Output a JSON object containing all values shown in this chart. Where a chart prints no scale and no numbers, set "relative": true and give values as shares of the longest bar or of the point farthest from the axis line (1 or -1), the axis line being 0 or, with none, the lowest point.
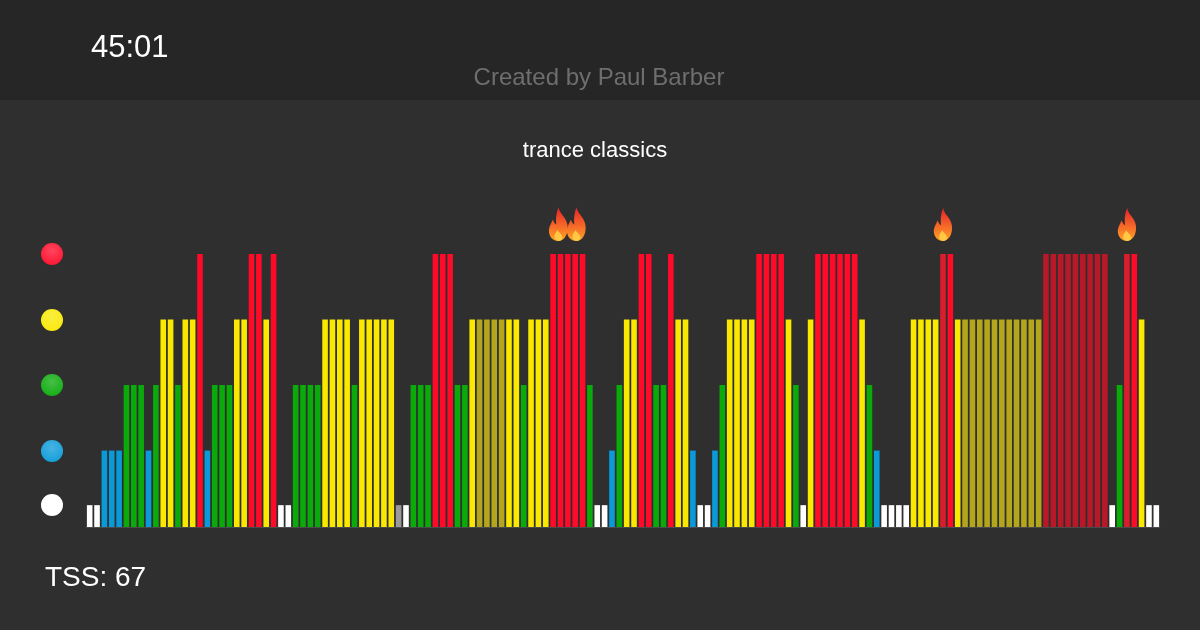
{
  "chart_data": {
    "type": "bar",
    "title": "trance classics",
    "subtitle": "Created by Paul Barber",
    "annotations": [
      "45:01",
      "TSS: 67"
    ],
    "relative": true,
    "categories": [
      null,
      null,
      null,
      null,
      null,
      null,
      null,
      null,
      null,
      null,
      null,
      null,
      null,
      null,
      null,
      null,
      null,
      null,
      null,
      null,
      null,
      null,
      null,
      null,
      null,
      null,
      null,
      null,
      null,
      null,
      null,
      null,
      null,
      null,
      null,
      null,
      null,
      null,
      null,
      null,
      null,
      null,
      null,
      null,
      null,
      null,
      null,
      null,
      null,
      null,
      null,
      null,
      null,
      null,
      null,
      null,
      null,
      null,
      null,
      null,
      null,
      null,
      null,
      null,
      null,
      null,
      null,
      null,
      null,
      null,
      null,
      null,
      null,
      null,
      null,
      null,
      null,
      null,
      null,
      null,
      null,
      null,
      null,
      null,
      null,
      null,
      null,
      null,
      null,
      null,
      null,
      null,
      null,
      null,
      null,
      null,
      null,
      null,
      null,
      null,
      null,
      null,
      null,
      null,
      null,
      null,
      null,
      null,
      null,
      null,
      null,
      null,
      null,
      null,
      null,
      null,
      null,
      null,
      null,
      null,
      null,
      null,
      null,
      null,
      null,
      null,
      null,
      null,
      null,
      null,
      null,
      null,
      null,
      null,
      null,
      null,
      null,
      null,
      null,
      null,
      null,
      null,
      null,
      null,
      null,
      null
    ],
    "values": [
      0.08,
      0.08,
      0.28,
      0.28,
      0.28,
      0.52,
      0.52,
      0.52,
      0.28,
      0.52,
      0.76,
      0.76,
      0.52,
      0.76,
      0.76,
      1,
      0.28,
      0.52,
      0.52,
      0.52,
      0.76,
      0.76,
      1,
      1,
      0.76,
      1,
      0.08,
      0.08,
      0.52,
      0.52,
      0.52,
      0.52,
      0.76,
      0.76,
      0.76,
      0.76,
      0.52,
      0.76,
      0.76,
      0.76,
      0.76,
      0.76,
      0.08,
      0.08,
      0.52,
      0.52,
      0.52,
      1,
      1,
      1,
      0.52,
      0.52,
      0.76,
      0.76,
      0.76,
      0.76,
      0.76,
      0.76,
      0.76,
      0.52,
      0.76,
      0.76,
      0.76,
      1,
      1,
      1,
      1,
      1,
      0.52,
      0.08,
      0.08,
      0.28,
      0.52,
      0.76,
      0.76,
      1,
      1,
      0.52,
      0.52,
      1,
      0.76,
      0.76,
      0.28,
      0.08,
      0.08,
      0.28,
      0.52,
      0.76,
      0.76,
      0.76,
      0.76,
      1,
      1,
      1,
      1,
      0.76,
      0.52,
      0.08,
      0.76,
      1,
      1,
      1,
      1,
      1,
      1,
      0.76,
      0.52,
      0.28,
      0.08,
      0.08,
      0.08,
      0.08,
      0.76,
      0.76,
      0.76,
      0.76,
      1,
      1,
      0.76,
      0.76,
      0.76,
      0.76,
      0.76,
      0.76,
      0.76,
      0.76,
      0.76,
      0.76,
      0.76,
      0.76,
      1,
      1,
      1,
      1,
      1,
      1,
      1,
      1,
      1,
      0.08,
      0.52,
      1,
      1,
      0.76,
      0.08,
      0.08
    ],
    "colors": [
      "#ffffff",
      "#ffffff",
      "#0a9ad8",
      "#0a9ad8",
      "#0a9ad8",
      "#0aaa0a",
      "#0aaa0a",
      "#0aaa0a",
      "#0a9ad8",
      "#0aaa0a",
      "#fae800",
      "#fae800",
      "#0aaa0a",
      "#fae800",
      "#fae800",
      "#ff0a28",
      "#0a9ad8",
      "#0aaa0a",
      "#0aaa0a",
      "#0aaa0a",
      "#fae800",
      "#fae800",
      "#ff0a28",
      "#ff0a28",
      "#fae800",
      "#ff0a28",
      "#ffffff",
      "#ffffff",
      "#0aaa0a",
      "#0aaa0a",
      "#0aaa0a",
      "#0aaa0a",
      "#fae800",
      "#fae800",
      "#fae800",
      "#fae800",
      "#0aaa0a",
      "#fae800",
      "#fae800",
      "#fae800",
      "#fae800",
      "#fae800",
      "#9a9a9a",
      "#ffffff",
      "#0aaa0a",
      "#0aaa0a",
      "#0aaa0a",
      "#ff0a28",
      "#ff0a28",
      "#ff0a28",
      "#0aaa0a",
      "#0aaa0a",
      "#fae800",
      "#b4a61c",
      "#b4a61c",
      "#b4a61c",
      "#b4a61c",
      "#fae800",
      "#fae800",
      "#0aaa0a",
      "#fae800",
      "#fae800",
      "#fae800",
      "#ff0a28",
      "#ff0a28",
      "#ff0a28",
      "#ff0a28",
      "#ff0a28",
      "#0aaa0a",
      "#ffffff",
      "#ffffff",
      "#0a9ad8",
      "#0aaa0a",
      "#fae800",
      "#fae800",
      "#ff0a28",
      "#ff0a28",
      "#0aaa0a",
      "#0aaa0a",
      "#ff0a28",
      "#fae800",
      "#fae800",
      "#0a9ad8",
      "#ffffff",
      "#ffffff",
      "#0a9ad8",
      "#0aaa0a",
      "#fae800",
      "#fae800",
      "#fae800",
      "#fae800",
      "#ff0a28",
      "#ff0a28",
      "#ff0a28",
      "#ff0a28",
      "#fae800",
      "#0aaa0a",
      "#ffffff",
      "#fae800",
      "#ff0a28",
      "#ff0a28",
      "#ff0a28",
      "#ff0a28",
      "#ff0a28",
      "#ff0a28",
      "#fae800",
      "#0aaa0a",
      "#0a9ad8",
      "#ffffff",
      "#ffffff",
      "#ffffff",
      "#ffffff",
      "#fae800",
      "#fae800",
      "#fae800",
      "#fae800",
      "#d81e2c",
      "#ff0a28",
      "#fae800",
      "#b4a61c",
      "#b4a61c",
      "#b4a61c",
      "#b4a61c",
      "#b4a61c",
      "#b4a61c",
      "#b4a61c",
      "#b4a61c",
      "#b4a61c",
      "#b4a61c",
      "#b4a61c",
      "#b81828",
      "#b81828",
      "#b81828",
      "#b81828",
      "#b81828",
      "#b81828",
      "#b81828",
      "#b81828",
      "#b81828",
      "#ffffff",
      "#0aaa0a",
      "#d81e2c",
      "#ff0a28",
      "#fae800",
      "#ffffff",
      "#ffffff"
    ]
  }
}
